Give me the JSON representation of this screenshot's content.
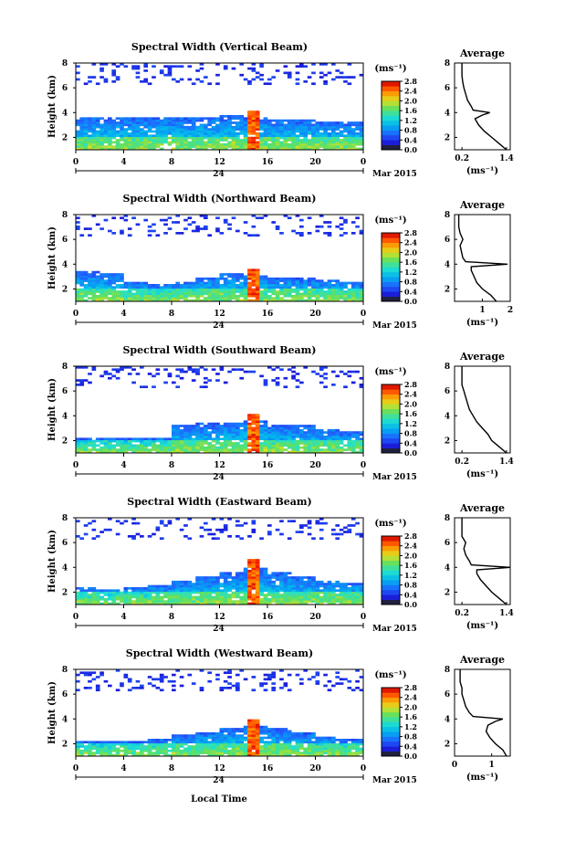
{
  "figure": {
    "bottom_label": "Local Time",
    "date_label": "Mar 2015",
    "day_label": "24",
    "height_label": "Height (km)",
    "unit_label": "(ms⁻¹)",
    "average_title": "Average",
    "avg_xlabel": "(ms⁻¹)"
  },
  "chart_data": [
    {
      "type": "heatmap",
      "title": "Spectral Width (Vertical Beam)",
      "xlabel": "",
      "ylabel": "Height (km)",
      "x_ticks": [
        "0",
        "4",
        "8",
        "12",
        "16",
        "20",
        "0"
      ],
      "y_ticks": [
        "2",
        "4",
        "6",
        "8"
      ],
      "xlim": [
        0,
        24
      ],
      "ylim": [
        1,
        8
      ],
      "colorbar": {
        "label": "(ms⁻¹)",
        "ticks": [
          "0.0",
          "0.4",
          "0.8",
          "1.2",
          "1.6",
          "2.0",
          "2.4",
          "2.8"
        ],
        "range": [
          0,
          2.8
        ]
      },
      "cloud_top_km": [
        3.7,
        3.7,
        3.6,
        3.6,
        3.6,
        3.7,
        3.8,
        3.6,
        3.5,
        3.4,
        3.3,
        3.2
      ],
      "spike_time_h": 14.8,
      "average": {
        "title": "Average",
        "xlabel": "(ms⁻¹)",
        "x_ticks": [
          "0.2",
          "1.4"
        ],
        "xlim": [
          0.0,
          1.5
        ],
        "y_ticks": [
          "2",
          "4",
          "6",
          "8"
        ],
        "ylim": [
          1,
          8
        ],
        "height_km": [
          1.0,
          1.5,
          2.0,
          2.5,
          3.0,
          3.5,
          3.8,
          4.0,
          4.2,
          4.5,
          5.0,
          5.5,
          6.0,
          6.5,
          7.0,
          7.5,
          8.0
        ],
        "width_ms": [
          1.4,
          1.2,
          1.0,
          0.8,
          0.65,
          0.55,
          0.75,
          0.95,
          0.5,
          0.45,
          0.35,
          0.3,
          0.25,
          0.22,
          0.2,
          0.2,
          0.2
        ]
      }
    },
    {
      "type": "heatmap",
      "title": "Spectral Width (Northward Beam)",
      "xlabel": "",
      "ylabel": "Height (km)",
      "x_ticks": [
        "0",
        "4",
        "8",
        "12",
        "16",
        "20",
        "0"
      ],
      "y_ticks": [
        "2",
        "4",
        "6",
        "8"
      ],
      "xlim": [
        0,
        24
      ],
      "ylim": [
        1,
        8
      ],
      "colorbar": {
        "label": "(ms⁻¹)",
        "ticks": [
          "0.0",
          "0.4",
          "0.8",
          "1.2",
          "1.6",
          "2.0",
          "2.4",
          "2.8"
        ],
        "range": [
          0,
          2.8
        ]
      },
      "cloud_top_km": [
        3.4,
        3.3,
        2.6,
        2.4,
        2.6,
        3.0,
        3.3,
        3.1,
        3.0,
        2.9,
        2.8,
        2.6
      ],
      "spike_time_h": 14.8,
      "average": {
        "title": "Average",
        "xlabel": "(ms⁻¹)",
        "x_ticks": [
          "1",
          "2"
        ],
        "xlim": [
          0.0,
          2.0
        ],
        "y_ticks": [
          "2",
          "4",
          "6",
          "8"
        ],
        "ylim": [
          1,
          8
        ],
        "height_km": [
          1.0,
          1.5,
          2.0,
          2.5,
          3.0,
          3.5,
          3.8,
          4.0,
          4.2,
          4.5,
          5.0,
          5.5,
          6.0,
          6.5,
          7.0,
          7.5,
          8.0
        ],
        "width_ms": [
          1.5,
          1.3,
          1.0,
          0.8,
          0.7,
          0.6,
          0.6,
          1.9,
          0.4,
          0.3,
          0.25,
          0.2,
          0.3,
          0.2,
          0.15,
          0.15,
          0.15
        ]
      }
    },
    {
      "type": "heatmap",
      "title": "Spectral Width (Southward Beam)",
      "xlabel": "",
      "ylabel": "Height (km)",
      "x_ticks": [
        "0",
        "4",
        "8",
        "12",
        "16",
        "20",
        "0"
      ],
      "y_ticks": [
        "2",
        "4",
        "6",
        "8"
      ],
      "xlim": [
        0,
        24
      ],
      "ylim": [
        1,
        8
      ],
      "colorbar": {
        "label": "(ms⁻¹)",
        "ticks": [
          "0.0",
          "0.4",
          "0.8",
          "1.2",
          "1.6",
          "2.0",
          "2.4",
          "2.8"
        ],
        "range": [
          0,
          2.8
        ]
      },
      "cloud_top_km": [
        2.2,
        2.2,
        2.2,
        2.3,
        3.3,
        3.4,
        3.5,
        3.6,
        3.3,
        3.2,
        3.0,
        2.7
      ],
      "spike_time_h": 14.8,
      "average": {
        "title": "Average",
        "xlabel": "(ms⁻¹)",
        "x_ticks": [
          "0.2",
          "1.4"
        ],
        "xlim": [
          0.0,
          1.5
        ],
        "y_ticks": [
          "2",
          "4",
          "6",
          "8"
        ],
        "ylim": [
          1,
          8
        ],
        "height_km": [
          1.0,
          1.5,
          2.0,
          2.5,
          3.0,
          3.5,
          4.0,
          4.5,
          5.0,
          5.5,
          6.0,
          6.5,
          7.0,
          7.5,
          8.0
        ],
        "width_ms": [
          1.4,
          1.2,
          1.0,
          0.9,
          0.75,
          0.6,
          0.5,
          0.4,
          0.35,
          0.3,
          0.25,
          0.2,
          0.2,
          0.2,
          0.2
        ]
      }
    },
    {
      "type": "heatmap",
      "title": "Spectral Width (Eastward Beam)",
      "xlabel": "",
      "ylabel": "Height (km)",
      "x_ticks": [
        "0",
        "4",
        "8",
        "12",
        "16",
        "20",
        "0"
      ],
      "y_ticks": [
        "2",
        "4",
        "6",
        "8"
      ],
      "xlim": [
        0,
        24
      ],
      "ylim": [
        1,
        8
      ],
      "colorbar": {
        "label": "(ms⁻¹)",
        "ticks": [
          "0.0",
          "0.4",
          "0.8",
          "1.2",
          "1.6",
          "2.0",
          "2.4",
          "2.8"
        ],
        "range": [
          0,
          2.8
        ]
      },
      "cloud_top_km": [
        2.4,
        2.3,
        2.4,
        2.6,
        3.0,
        3.3,
        3.6,
        4.0,
        3.6,
        3.3,
        3.0,
        2.8
      ],
      "spike_time_h": 14.8,
      "average": {
        "title": "Average",
        "xlabel": "(ms⁻¹)",
        "x_ticks": [
          "0.2",
          "1.4"
        ],
        "xlim": [
          0.0,
          1.5
        ],
        "y_ticks": [
          "2",
          "4",
          "6",
          "8"
        ],
        "ylim": [
          1,
          8
        ],
        "height_km": [
          1.0,
          1.5,
          2.0,
          2.5,
          3.0,
          3.5,
          3.8,
          4.0,
          4.2,
          4.5,
          5.0,
          5.5,
          6.0,
          6.5,
          7.0,
          7.5,
          8.0
        ],
        "width_ms": [
          1.4,
          1.2,
          1.0,
          0.85,
          0.7,
          0.6,
          0.6,
          1.5,
          0.45,
          0.4,
          0.3,
          0.25,
          0.3,
          0.2,
          0.2,
          0.2,
          0.2
        ]
      }
    },
    {
      "type": "heatmap",
      "title": "Spectral Width (Westward Beam)",
      "xlabel": "Local Time",
      "ylabel": "Height (km)",
      "x_ticks": [
        "0",
        "4",
        "8",
        "12",
        "16",
        "20",
        "0"
      ],
      "y_ticks": [
        "2",
        "4",
        "6",
        "8"
      ],
      "xlim": [
        0,
        24
      ],
      "ylim": [
        1,
        8
      ],
      "colorbar": {
        "label": "(ms⁻¹)",
        "ticks": [
          "0.0",
          "0.4",
          "0.8",
          "1.2",
          "1.6",
          "2.0",
          "2.4",
          "2.8"
        ],
        "range": [
          0,
          2.8
        ]
      },
      "cloud_top_km": [
        2.2,
        2.2,
        2.2,
        2.4,
        2.7,
        3.0,
        3.3,
        3.4,
        3.2,
        2.9,
        2.6,
        2.4
      ],
      "spike_time_h": 14.8,
      "average": {
        "title": "Average",
        "xlabel": "(ms⁻¹)",
        "x_ticks": [
          "0",
          "1"
        ],
        "xlim": [
          0.0,
          1.5
        ],
        "y_ticks": [
          "2",
          "4",
          "6",
          "8"
        ],
        "ylim": [
          1,
          8
        ],
        "height_km": [
          1.0,
          1.5,
          2.0,
          2.5,
          3.0,
          3.5,
          3.8,
          4.0,
          4.2,
          4.5,
          5.0,
          5.5,
          6.0,
          6.5,
          7.0,
          7.5,
          8.0
        ],
        "width_ms": [
          1.4,
          1.3,
          1.1,
          0.95,
          0.85,
          0.9,
          1.1,
          1.3,
          0.5,
          0.4,
          0.3,
          0.25,
          0.2,
          0.2,
          0.15,
          0.15,
          0.15
        ]
      }
    }
  ]
}
